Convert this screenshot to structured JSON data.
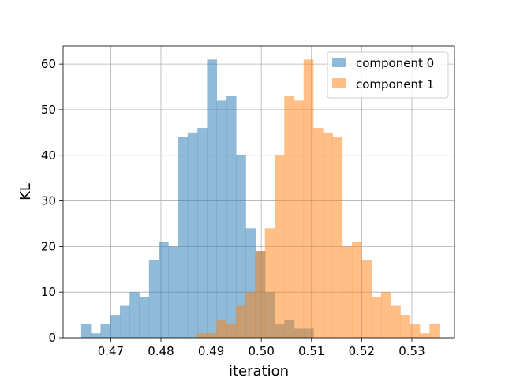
{
  "chart_data": {
    "type": "histogram",
    "title": "",
    "xlabel": "iteration",
    "ylabel": "KL",
    "xlim": [
      0.4605,
      0.5385
    ],
    "ylim": [
      0,
      64
    ],
    "xticks": [
      0.47,
      0.48,
      0.49,
      0.5,
      0.51,
      0.52,
      0.53
    ],
    "xtick_labels": [
      "0.47",
      "0.48",
      "0.49",
      "0.50",
      "0.51",
      "0.52",
      "0.53"
    ],
    "yticks": [
      0,
      10,
      20,
      30,
      40,
      50,
      60
    ],
    "ytick_labels": [
      "0",
      "10",
      "20",
      "30",
      "40",
      "50",
      "60"
    ],
    "grid": true,
    "legend_position": "top-right",
    "series": [
      {
        "name": "component 0",
        "color": "#1f77b4",
        "opacity": 0.5,
        "bin_start": 0.4641,
        "bin_width": 0.00193,
        "counts": [
          3,
          1,
          3,
          5,
          7,
          10,
          9,
          17,
          21,
          20,
          44,
          45,
          46,
          61,
          52,
          53,
          40,
          24,
          19,
          10,
          3,
          4,
          2,
          2
        ]
      },
      {
        "name": "component 1",
        "color": "#ff7f0e",
        "opacity": 0.5,
        "bin_start": 0.4872,
        "bin_width": 0.00193,
        "counts": [
          1,
          1,
          4,
          3,
          7,
          10,
          19,
          24,
          40,
          53,
          52,
          61,
          46,
          45,
          44,
          20,
          21,
          17,
          9,
          10,
          7,
          5,
          3,
          1,
          3
        ]
      }
    ]
  }
}
